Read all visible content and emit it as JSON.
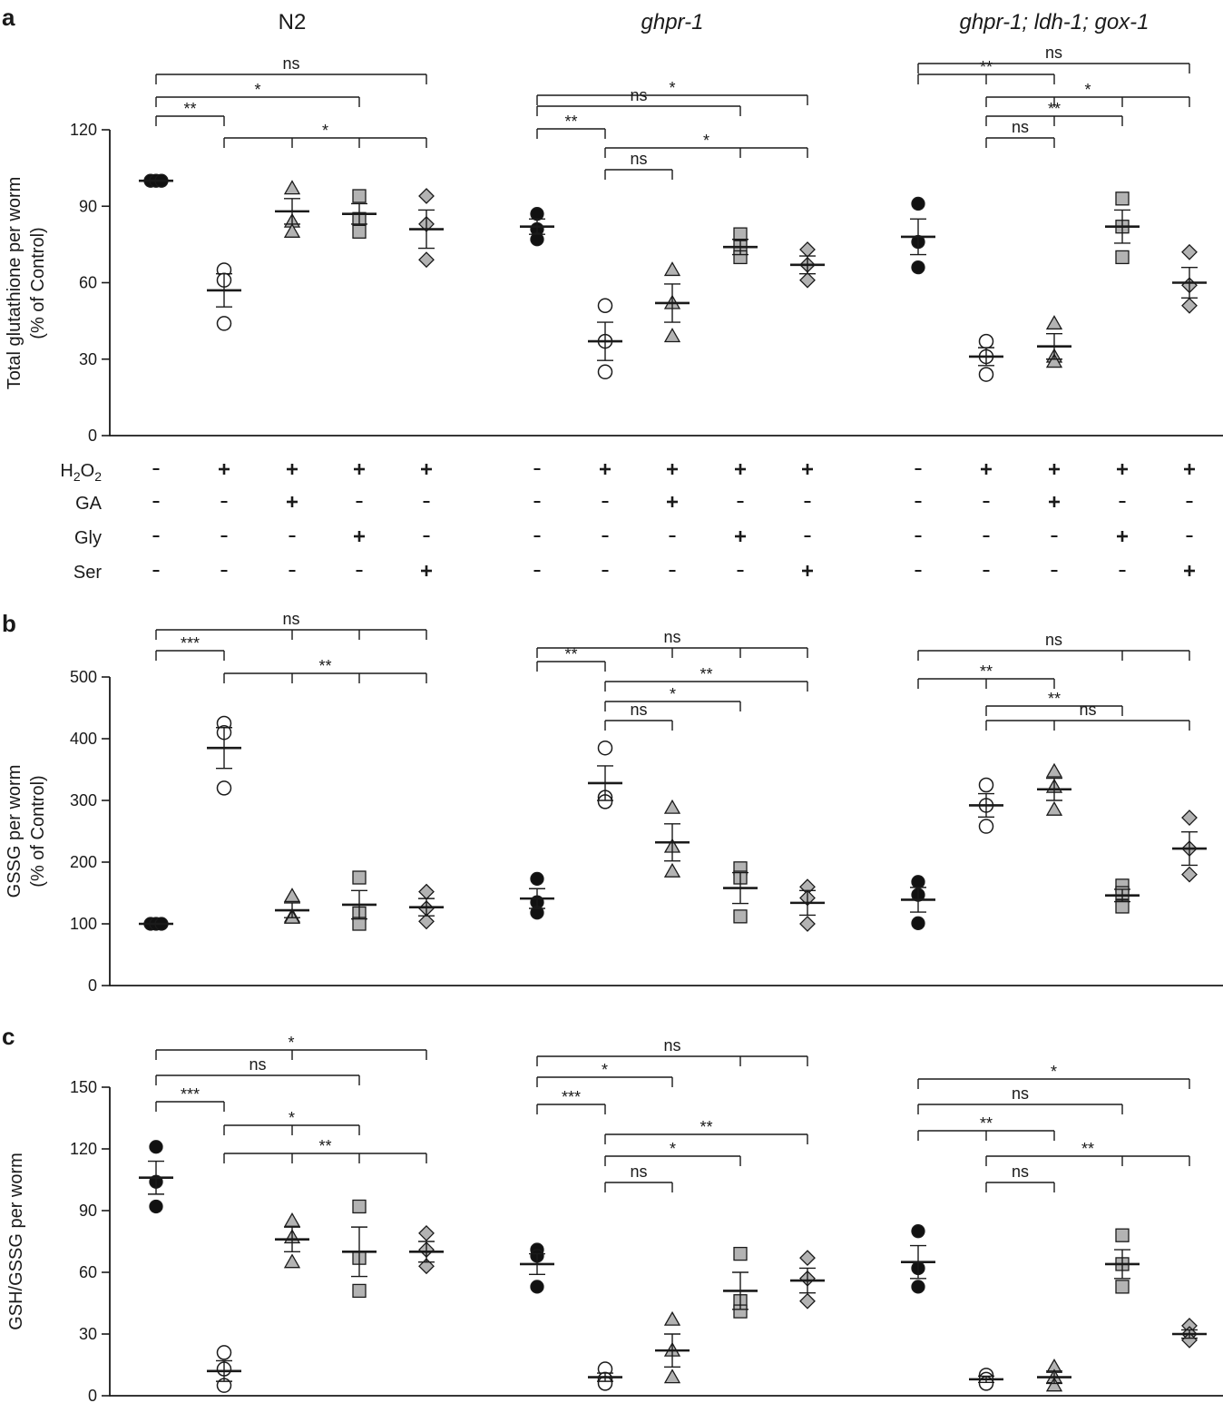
{
  "colors": {
    "ink": "#1a1a1a",
    "filled_marker": "#111111",
    "open_marker": "#ffffff",
    "grey_marker": "#b3b3b3"
  },
  "groups": [
    {
      "name": "N2",
      "italic": false
    },
    {
      "name": "ghpr-1",
      "italic": true
    },
    {
      "name": "ghpr-1; ldh-1; gox-1",
      "italic": true
    }
  ],
  "conditions": {
    "row_labels": [
      "H2O2",
      "GA",
      "Gly",
      "Ser"
    ],
    "row_labels_display": [
      [
        "H",
        "2",
        "O",
        "2"
      ],
      [
        "GA"
      ],
      [
        "Gly"
      ],
      [
        "Ser"
      ]
    ],
    "treatments": [
      {
        "H2O2": "-",
        "GA": "-",
        "Gly": "-",
        "Ser": "-"
      },
      {
        "H2O2": "+",
        "GA": "-",
        "Gly": "-",
        "Ser": "-"
      },
      {
        "H2O2": "+",
        "GA": "+",
        "Gly": "-",
        "Ser": "-"
      },
      {
        "H2O2": "+",
        "GA": "-",
        "Gly": "+",
        "Ser": "-"
      },
      {
        "H2O2": "+",
        "GA": "-",
        "Gly": "-",
        "Ser": "+"
      }
    ],
    "markers": [
      "filled-circle",
      "open-circle",
      "grey-triangle",
      "grey-square",
      "grey-diamond"
    ]
  },
  "chart_data": [
    {
      "panel": "a",
      "type": "scatter",
      "ylabel": [
        "Total glutathione per worm",
        "(% of Control)"
      ],
      "ylim": [
        0,
        120
      ],
      "yticks": [
        0,
        30,
        60,
        90,
        120
      ],
      "series": [
        {
          "group": "N2",
          "condition": 0,
          "points": [
            100,
            100,
            100
          ],
          "mean": 100,
          "sem": 0
        },
        {
          "group": "N2",
          "condition": 1,
          "points": [
            65,
            61,
            44
          ],
          "mean": 57,
          "sem": 6.5
        },
        {
          "group": "N2",
          "condition": 2,
          "points": [
            97,
            84,
            80
          ],
          "mean": 88,
          "sem": 5
        },
        {
          "group": "N2",
          "condition": 3,
          "points": [
            94,
            85,
            80
          ],
          "mean": 87,
          "sem": 4
        },
        {
          "group": "N2",
          "condition": 4,
          "points": [
            94,
            83,
            69
          ],
          "mean": 81,
          "sem": 7.5
        },
        {
          "group": "ghpr-1",
          "condition": 0,
          "points": [
            87,
            81,
            77
          ],
          "mean": 82,
          "sem": 3
        },
        {
          "group": "ghpr-1",
          "condition": 1,
          "points": [
            51,
            37,
            25
          ],
          "mean": 37,
          "sem": 7.5
        },
        {
          "group": "ghpr-1",
          "condition": 2,
          "points": [
            65,
            52,
            39
          ],
          "mean": 52,
          "sem": 7.5
        },
        {
          "group": "ghpr-1",
          "condition": 3,
          "points": [
            79,
            74,
            70
          ],
          "mean": 74,
          "sem": 3
        },
        {
          "group": "ghpr-1",
          "condition": 4,
          "points": [
            73,
            67,
            61
          ],
          "mean": 67,
          "sem": 3.5
        },
        {
          "group": "ghpr-1; ldh-1; gox-1",
          "condition": 0,
          "points": [
            91,
            76,
            66
          ],
          "mean": 78,
          "sem": 7
        },
        {
          "group": "ghpr-1; ldh-1; gox-1",
          "condition": 1,
          "points": [
            37,
            31,
            24
          ],
          "mean": 31,
          "sem": 3.5
        },
        {
          "group": "ghpr-1; ldh-1; gox-1",
          "condition": 2,
          "points": [
            44,
            31,
            29
          ],
          "mean": 35,
          "sem": 5
        },
        {
          "group": "ghpr-1; ldh-1; gox-1",
          "condition": 3,
          "points": [
            93,
            82,
            70
          ],
          "mean": 82,
          "sem": 6.5
        },
        {
          "group": "ghpr-1; ldh-1; gox-1",
          "condition": 4,
          "points": [
            72,
            59,
            51
          ],
          "mean": 60,
          "sem": 6
        }
      ],
      "brackets": [
        {
          "group": 0,
          "from": 0,
          "to": 4,
          "via": [],
          "label": "ns",
          "tier": 3
        },
        {
          "group": 0,
          "from": 0,
          "to": 3,
          "via": [],
          "label": "*",
          "tier": 2
        },
        {
          "group": 0,
          "from": 0,
          "to": 1,
          "via": [],
          "label": "**",
          "tier": 1
        },
        {
          "group": 0,
          "from": 1,
          "to": 4,
          "via": [
            2,
            3
          ],
          "label": "*",
          "tier": 0
        },
        {
          "group": 1,
          "from": 0,
          "to": 4,
          "via": [],
          "label": "*",
          "tier": 4
        },
        {
          "group": 1,
          "from": 0,
          "to": 3,
          "via": [],
          "label": "ns",
          "tier": 3
        },
        {
          "group": 1,
          "from": 0,
          "to": 1,
          "via": [],
          "label": "**",
          "tier": 2
        },
        {
          "group": 1,
          "from": 1,
          "to": 4,
          "via": [
            3
          ],
          "label": "*",
          "tier": 1
        },
        {
          "group": 1,
          "from": 1,
          "to": 2,
          "via": [],
          "label": "ns",
          "tier": 0
        },
        {
          "group": 2,
          "from": 0,
          "to": 4,
          "via": [],
          "label": "ns",
          "tier": 4
        },
        {
          "group": 2,
          "from": 0,
          "to": 2,
          "via": [
            1
          ],
          "label": "**",
          "tier": 3
        },
        {
          "group": 2,
          "from": 1,
          "to": 4,
          "via": [
            2,
            3
          ],
          "label": "*",
          "tier": 2
        },
        {
          "group": 2,
          "from": 1,
          "to": 3,
          "via": [
            2
          ],
          "label": "**",
          "tier": 1
        },
        {
          "group": 2,
          "from": 1,
          "to": 2,
          "via": [],
          "label": "ns",
          "tier": 0
        }
      ]
    },
    {
      "panel": "b",
      "type": "scatter",
      "ylabel": [
        "GSSG per worm",
        "(% of Control)"
      ],
      "ylim": [
        0,
        500
      ],
      "yticks": [
        0,
        100,
        200,
        300,
        400,
        500
      ],
      "series": [
        {
          "group": "N2",
          "condition": 0,
          "points": [
            100,
            100,
            100
          ],
          "mean": 100,
          "sem": 0
        },
        {
          "group": "N2",
          "condition": 1,
          "points": [
            425,
            410,
            320
          ],
          "mean": 385,
          "sem": 33
        },
        {
          "group": "N2",
          "condition": 2,
          "points": [
            145,
            112,
            110
          ],
          "mean": 122,
          "sem": 12
        },
        {
          "group": "N2",
          "condition": 3,
          "points": [
            175,
            117,
            100
          ],
          "mean": 131,
          "sem": 23
        },
        {
          "group": "N2",
          "condition": 4,
          "points": [
            152,
            125,
            104
          ],
          "mean": 127,
          "sem": 14
        },
        {
          "group": "ghpr-1",
          "condition": 0,
          "points": [
            173,
            135,
            118
          ],
          "mean": 141,
          "sem": 16
        },
        {
          "group": "ghpr-1",
          "condition": 1,
          "points": [
            385,
            305,
            298
          ],
          "mean": 328,
          "sem": 28
        },
        {
          "group": "ghpr-1",
          "condition": 2,
          "points": [
            288,
            225,
            185
          ],
          "mean": 232,
          "sem": 30
        },
        {
          "group": "ghpr-1",
          "condition": 3,
          "points": [
            190,
            175,
            112
          ],
          "mean": 158,
          "sem": 25
        },
        {
          "group": "ghpr-1",
          "condition": 4,
          "points": [
            160,
            142,
            100
          ],
          "mean": 134,
          "sem": 20
        },
        {
          "group": "ghpr-1; ldh-1; gox-1",
          "condition": 0,
          "points": [
            168,
            147,
            101
          ],
          "mean": 139,
          "sem": 20
        },
        {
          "group": "ghpr-1; ldh-1; gox-1",
          "condition": 1,
          "points": [
            325,
            292,
            258
          ],
          "mean": 292,
          "sem": 19
        },
        {
          "group": "ghpr-1; ldh-1; gox-1",
          "condition": 2,
          "points": [
            347,
            322,
            285
          ],
          "mean": 318,
          "sem": 18
        },
        {
          "group": "ghpr-1; ldh-1; gox-1",
          "condition": 3,
          "points": [
            162,
            150,
            128
          ],
          "mean": 146,
          "sem": 10
        },
        {
          "group": "ghpr-1; ldh-1; gox-1",
          "condition": 4,
          "points": [
            272,
            222,
            180
          ],
          "mean": 222,
          "sem": 27
        }
      ],
      "brackets": [
        {
          "group": 0,
          "from": 0,
          "to": 4,
          "via": [
            2,
            3
          ],
          "label": "ns",
          "tier": 2
        },
        {
          "group": 0,
          "from": 0,
          "to": 1,
          "via": [],
          "label": "***",
          "tier": 1
        },
        {
          "group": 0,
          "from": 1,
          "to": 4,
          "via": [
            2,
            3
          ],
          "label": "**",
          "tier": 0
        },
        {
          "group": 1,
          "from": 0,
          "to": 4,
          "via": [
            2,
            3
          ],
          "label": "ns",
          "tier": 4
        },
        {
          "group": 1,
          "from": 0,
          "to": 1,
          "via": [],
          "label": "**",
          "tier": 3
        },
        {
          "group": 1,
          "from": 1,
          "to": 4,
          "via": [],
          "label": "**",
          "tier": 2
        },
        {
          "group": 1,
          "from": 1,
          "to": 3,
          "via": [],
          "label": "*",
          "tier": 1
        },
        {
          "group": 1,
          "from": 1,
          "to": 2,
          "via": [],
          "label": "ns",
          "tier": 0
        },
        {
          "group": 2,
          "from": 0,
          "to": 4,
          "via": [
            3
          ],
          "label": "ns",
          "tier": 3
        },
        {
          "group": 2,
          "from": 0,
          "to": 2,
          "via": [
            1
          ],
          "label": "**",
          "tier": 2
        },
        {
          "group": 2,
          "from": 1,
          "to": 3,
          "via": [],
          "label": "**",
          "tier": 1
        },
        {
          "group": 2,
          "from": 1,
          "to": 4,
          "via": [
            2
          ],
          "label": "ns",
          "tier": 0
        }
      ]
    },
    {
      "panel": "c",
      "type": "scatter",
      "ylabel": [
        "GSH/GSSG per worm"
      ],
      "ylim": [
        0,
        150
      ],
      "yticks": [
        0,
        30,
        60,
        90,
        120,
        150
      ],
      "series": [
        {
          "group": "N2",
          "condition": 0,
          "points": [
            121,
            104,
            92
          ],
          "mean": 106,
          "sem": 8
        },
        {
          "group": "N2",
          "condition": 1,
          "points": [
            21,
            13,
            5
          ],
          "mean": 12,
          "sem": 5
        },
        {
          "group": "N2",
          "condition": 2,
          "points": [
            85,
            77,
            65
          ],
          "mean": 76,
          "sem": 6
        },
        {
          "group": "N2",
          "condition": 3,
          "points": [
            92,
            67,
            51
          ],
          "mean": 70,
          "sem": 12
        },
        {
          "group": "N2",
          "condition": 4,
          "points": [
            79,
            71,
            63
          ],
          "mean": 70,
          "sem": 5
        },
        {
          "group": "ghpr-1",
          "condition": 0,
          "points": [
            71,
            68,
            53
          ],
          "mean": 64,
          "sem": 5
        },
        {
          "group": "ghpr-1",
          "condition": 1,
          "points": [
            13,
            8,
            6
          ],
          "mean": 9,
          "sem": 2
        },
        {
          "group": "ghpr-1",
          "condition": 2,
          "points": [
            37,
            22,
            9
          ],
          "mean": 22,
          "sem": 8
        },
        {
          "group": "ghpr-1",
          "condition": 3,
          "points": [
            69,
            46,
            41
          ],
          "mean": 51,
          "sem": 9
        },
        {
          "group": "ghpr-1",
          "condition": 4,
          "points": [
            67,
            57,
            46
          ],
          "mean": 56,
          "sem": 6
        },
        {
          "group": "ghpr-1; ldh-1; gox-1",
          "condition": 0,
          "points": [
            80,
            62,
            53
          ],
          "mean": 65,
          "sem": 8
        },
        {
          "group": "ghpr-1; ldh-1; gox-1",
          "condition": 1,
          "points": [
            10,
            8,
            6
          ],
          "mean": 8,
          "sem": 1.5
        },
        {
          "group": "ghpr-1; ldh-1; gox-1",
          "condition": 2,
          "points": [
            14,
            9,
            5
          ],
          "mean": 9,
          "sem": 3
        },
        {
          "group": "ghpr-1; ldh-1; gox-1",
          "condition": 3,
          "points": [
            78,
            64,
            53
          ],
          "mean": 64,
          "sem": 7
        },
        {
          "group": "ghpr-1; ldh-1; gox-1",
          "condition": 4,
          "points": [
            34,
            30,
            27
          ],
          "mean": 30,
          "sem": 2
        }
      ],
      "brackets": [
        {
          "group": 0,
          "from": 0,
          "to": 4,
          "via": [
            2
          ],
          "label": "*",
          "tier": 4
        },
        {
          "group": 0,
          "from": 0,
          "to": 3,
          "via": [],
          "label": "ns",
          "tier": 3
        },
        {
          "group": 0,
          "from": 0,
          "to": 1,
          "via": [],
          "label": "***",
          "tier": 2
        },
        {
          "group": 0,
          "from": 1,
          "to": 3,
          "via": [
            2
          ],
          "label": "*",
          "tier": 1
        },
        {
          "group": 0,
          "from": 1,
          "to": 4,
          "via": [
            2,
            3
          ],
          "label": "**",
          "tier": 0
        },
        {
          "group": 1,
          "from": 0,
          "to": 4,
          "via": [
            3
          ],
          "label": "ns",
          "tier": 5
        },
        {
          "group": 1,
          "from": 0,
          "to": 2,
          "via": [],
          "label": "*",
          "tier": 4
        },
        {
          "group": 1,
          "from": 0,
          "to": 1,
          "via": [],
          "label": "***",
          "tier": 3
        },
        {
          "group": 1,
          "from": 1,
          "to": 4,
          "via": [],
          "label": "**",
          "tier": 2
        },
        {
          "group": 1,
          "from": 1,
          "to": 3,
          "via": [],
          "label": "*",
          "tier": 1
        },
        {
          "group": 1,
          "from": 1,
          "to": 2,
          "via": [],
          "label": "ns",
          "tier": 0
        },
        {
          "group": 2,
          "from": 0,
          "to": 4,
          "via": [],
          "label": "*",
          "tier": 4
        },
        {
          "group": 2,
          "from": 0,
          "to": 3,
          "via": [],
          "label": "ns",
          "tier": 3
        },
        {
          "group": 2,
          "from": 0,
          "to": 2,
          "via": [
            1
          ],
          "label": "**",
          "tier": 2
        },
        {
          "group": 2,
          "from": 1,
          "to": 4,
          "via": [
            3
          ],
          "label": "**",
          "tier": 1
        },
        {
          "group": 2,
          "from": 1,
          "to": 2,
          "via": [],
          "label": "ns",
          "tier": 0
        }
      ]
    }
  ]
}
